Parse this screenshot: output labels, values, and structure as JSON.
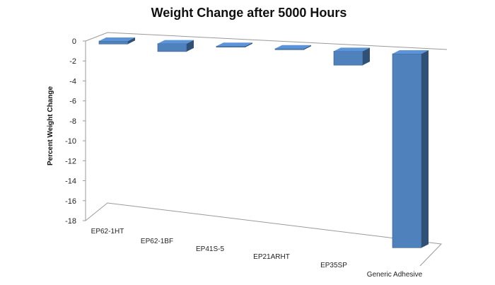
{
  "chart_data": {
    "type": "bar",
    "title": "Weight Change after 5000 Hours",
    "ylabel": "Percent Weight Change",
    "xlabel": "",
    "categories": [
      "EP62-1HT",
      "EP62-1BF",
      "EP41S-5",
      "EP21ARHT",
      "EP35SP",
      "Generic Adhesive"
    ],
    "values": [
      -0.3,
      -0.8,
      -0.02,
      -0.1,
      -1.4,
      -18
    ],
    "ylim": [
      -18,
      0
    ],
    "yticks": [
      0,
      -2,
      -4,
      -6,
      -8,
      -10,
      -12,
      -14,
      -16,
      -18
    ],
    "bar_color": "#4f81bd",
    "three_d": true,
    "grid": false,
    "legend": "none"
  }
}
